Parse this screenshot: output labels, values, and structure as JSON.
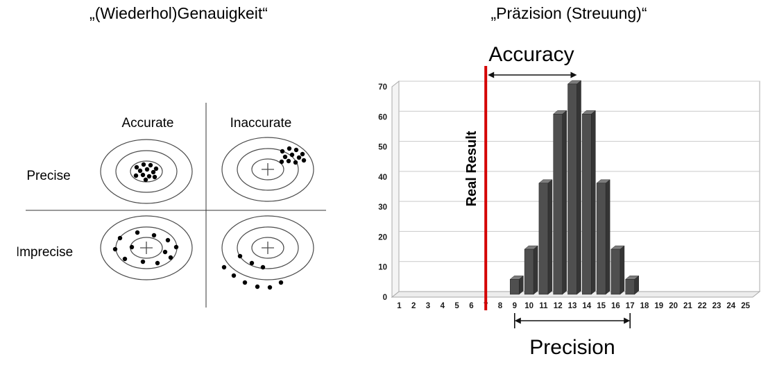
{
  "left_panel": {
    "title": "„(Wiederhol)Genauigkeit“",
    "col_labels": [
      "Accurate",
      "Inaccurate"
    ],
    "row_labels": [
      "Precise",
      "Imprecise"
    ],
    "targets": [
      {
        "name": "precise-accurate",
        "cross": false,
        "dots": [
          [
            -14,
            -6
          ],
          [
            -4,
            -10
          ],
          [
            6,
            -9
          ],
          [
            14,
            -4
          ],
          [
            -9,
            -1
          ],
          [
            1,
            -3
          ],
          [
            10,
            1
          ],
          [
            -15,
            6
          ],
          [
            -5,
            5
          ],
          [
            4,
            7
          ],
          [
            12,
            8
          ],
          [
            -1,
            12
          ]
        ]
      },
      {
        "name": "precise-inaccurate",
        "cross": true,
        "dots": [
          [
            21,
            -26
          ],
          [
            31,
            -30
          ],
          [
            41,
            -28
          ],
          [
            50,
            -22
          ],
          [
            25,
            -18
          ],
          [
            35,
            -21
          ],
          [
            45,
            -17
          ],
          [
            20,
            -11
          ],
          [
            30,
            -12
          ],
          [
            40,
            -10
          ],
          [
            52,
            -13
          ]
        ]
      },
      {
        "name": "imprecise-accurate",
        "cross": true,
        "dots": [
          [
            -38,
            -14
          ],
          [
            -13,
            -22
          ],
          [
            11,
            -18
          ],
          [
            31,
            -11
          ],
          [
            -45,
            2
          ],
          [
            -21,
            -1
          ],
          [
            27,
            6
          ],
          [
            43,
            -1
          ],
          [
            -31,
            16
          ],
          [
            -5,
            20
          ],
          [
            16,
            22
          ],
          [
            35,
            14
          ]
        ]
      },
      {
        "name": "imprecise-inaccurate",
        "cross": true,
        "dots": [
          [
            -40,
            12
          ],
          [
            -23,
            22
          ],
          [
            -7,
            28
          ],
          [
            -63,
            28
          ],
          [
            -49,
            40
          ],
          [
            -33,
            50
          ],
          [
            -15,
            56
          ],
          [
            3,
            57
          ],
          [
            19,
            50
          ]
        ]
      }
    ]
  },
  "right_panel": {
    "title": "„Präzision (Streuung)“",
    "annotations": {
      "accuracy": "Accuracy",
      "real_result": "Real Result",
      "precision": "Precision"
    }
  },
  "chart_data": {
    "type": "bar",
    "title": "„Präzision (Streuung)“",
    "categories": [
      1,
      2,
      3,
      4,
      5,
      6,
      7,
      8,
      9,
      10,
      11,
      12,
      13,
      14,
      15,
      16,
      17,
      18,
      19,
      20,
      21,
      22,
      23,
      24,
      25
    ],
    "values": [
      0,
      0,
      0,
      0,
      0,
      0,
      0,
      0,
      5,
      15,
      37,
      60,
      70,
      60,
      37,
      15,
      5,
      0,
      0,
      0,
      0,
      0,
      0,
      0,
      0
    ],
    "xlabel": "",
    "ylabel": "",
    "ylim": [
      0,
      70
    ],
    "yticks": [
      0,
      10,
      20,
      30,
      40,
      50,
      60,
      70
    ],
    "grid": true,
    "legend": false,
    "annotations": {
      "real_result_x": 7,
      "accuracy_span": [
        7,
        13
      ],
      "precision_span": [
        9,
        17
      ]
    }
  },
  "colors": {
    "red_line": "#d40000",
    "bar_front": "#4f4f4f",
    "bar_top": "#7d7d7d",
    "bar_side": "#353535",
    "grid_line": "#c9c9c9"
  }
}
